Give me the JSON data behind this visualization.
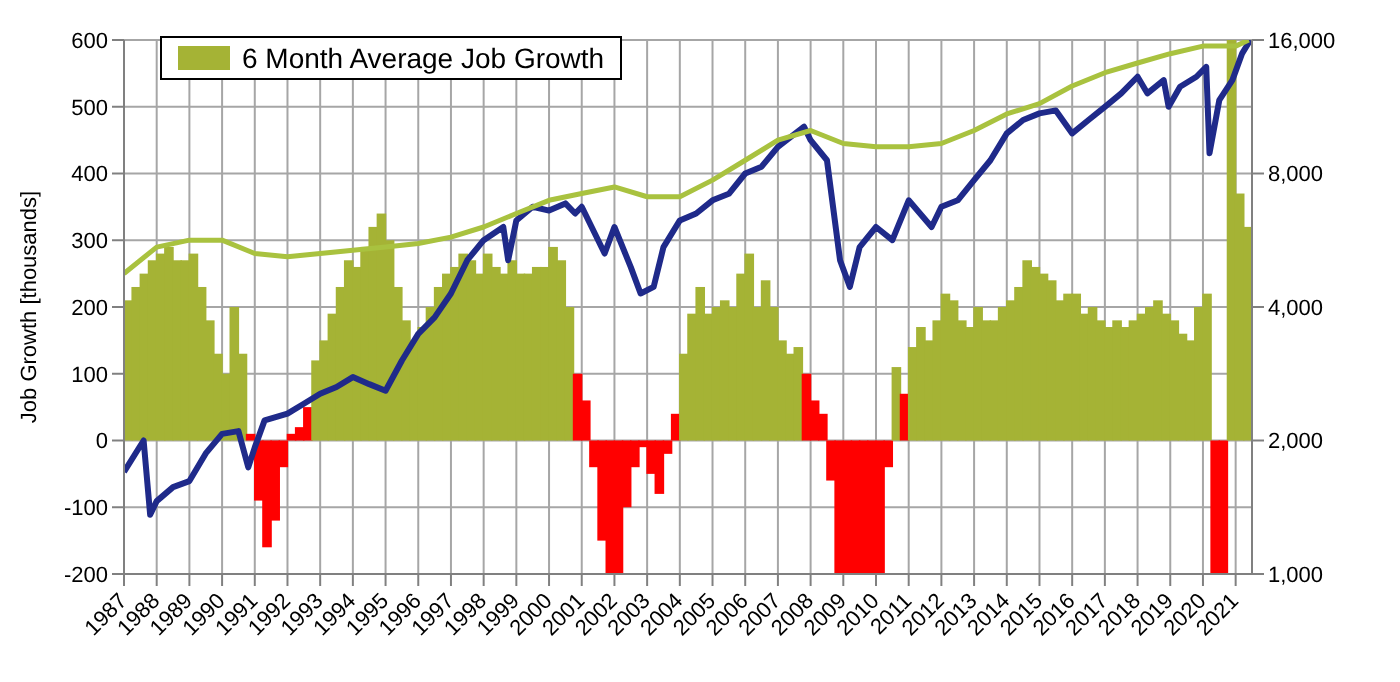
{
  "chart_data": {
    "type": "bar",
    "ylabel": "Job Growth [thousands]",
    "xlim": [
      1987,
      2021.5
    ],
    "xticks": [
      1987,
      1988,
      1989,
      1990,
      1991,
      1992,
      1993,
      1994,
      1995,
      1996,
      1997,
      1998,
      1999,
      2000,
      2001,
      2002,
      2003,
      2004,
      2005,
      2006,
      2007,
      2008,
      2009,
      2010,
      2011,
      2012,
      2013,
      2014,
      2015,
      2016,
      2017,
      2018,
      2019,
      2020,
      2021
    ],
    "ylim": [
      -200,
      600
    ],
    "yticks": [
      -200,
      -100,
      0,
      100,
      200,
      300,
      400,
      500,
      600
    ],
    "y2lim": [
      1000,
      16000
    ],
    "y2ticks": [
      {
        "value": 1000,
        "label": "1,000"
      },
      {
        "value": 2000,
        "label": "2,000"
      },
      {
        "value": 4000,
        "label": "4,000"
      },
      {
        "value": 8000,
        "label": "8,000"
      },
      {
        "value": 16000,
        "label": "16,000"
      }
    ],
    "log": "y2",
    "grid": true,
    "legend": "top left",
    "series": [
      {
        "name": "6 Month Average Job Growth",
        "color": "#a5b335",
        "x": [
          1987.125,
          1987.375,
          1987.625,
          1987.875,
          1988.125,
          1988.375,
          1988.625,
          1988.875,
          1989.125,
          1989.375,
          1989.625,
          1989.875,
          1990.125,
          1990.375,
          1990.625,
          1990.875,
          1991.125,
          1991.375,
          1991.625,
          1991.875,
          1992.125,
          1992.375,
          1992.625,
          1992.875,
          1993.125,
          1993.375,
          1993.625,
          1993.875,
          1994.125,
          1994.375,
          1994.625,
          1994.875,
          1995.125,
          1995.375,
          1995.625,
          1995.875,
          1996.125,
          1996.375,
          1996.625,
          1996.875,
          1997.125,
          1997.375,
          1997.625,
          1997.875,
          1998.125,
          1998.375,
          1998.625,
          1998.875,
          1999.125,
          1999.375,
          1999.625,
          1999.875,
          2000.125,
          2000.375,
          2000.625,
          2000.875,
          2001.125,
          2001.375,
          2001.625,
          2001.875,
          2002.125,
          2002.375,
          2002.625,
          2002.875,
          2003.125,
          2003.375,
          2003.625,
          2003.875,
          2004.125,
          2004.375,
          2004.625,
          2004.875,
          2005.125,
          2005.375,
          2005.625,
          2005.875,
          2006.125,
          2006.375,
          2006.625,
          2006.875,
          2007.125,
          2007.375,
          2007.625,
          2007.875,
          2008.125,
          2008.375,
          2008.625,
          2008.875,
          2009.125,
          2009.375,
          2009.625,
          2009.875,
          2010.125,
          2010.375,
          2010.625,
          2010.875,
          2011.125,
          2011.375,
          2011.625,
          2011.875,
          2012.125,
          2012.375,
          2012.625,
          2012.875,
          2013.125,
          2013.375,
          2013.625,
          2013.875,
          2014.125,
          2014.375,
          2014.625,
          2014.875,
          2015.125,
          2015.375,
          2015.625,
          2015.875,
          2016.125,
          2016.375,
          2016.625,
          2016.875,
          2017.125,
          2017.375,
          2017.625,
          2017.875,
          2018.125,
          2018.375,
          2018.625,
          2018.875,
          2019.125,
          2019.375,
          2019.625,
          2019.875,
          2020.125,
          2020.375,
          2020.625,
          2020.875,
          2021.125,
          2021.375
        ],
        "values": [
          210,
          230,
          250,
          270,
          280,
          290,
          270,
          270,
          280,
          230,
          180,
          130,
          100,
          200,
          130,
          10,
          -90,
          -160,
          -120,
          -40,
          10,
          20,
          50,
          120,
          150,
          190,
          230,
          270,
          260,
          290,
          320,
          340,
          300,
          230,
          180,
          150,
          170,
          200,
          230,
          250,
          260,
          280,
          270,
          250,
          280,
          260,
          250,
          270,
          250,
          250,
          260,
          260,
          290,
          270,
          200,
          100,
          60,
          -40,
          -150,
          -200,
          -200,
          -100,
          -40,
          -10,
          -50,
          -80,
          -20,
          40,
          130,
          190,
          230,
          190,
          200,
          210,
          200,
          250,
          280,
          200,
          240,
          200,
          150,
          130,
          140,
          100,
          60,
          40,
          -60,
          -200,
          -200,
          -200,
          -200,
          -200,
          -200,
          -40,
          110,
          70,
          140,
          170,
          150,
          180,
          220,
          210,
          180,
          170,
          200,
          180,
          180,
          200,
          210,
          230,
          270,
          260,
          250,
          240,
          210,
          220,
          220,
          190,
          200,
          180,
          170,
          180,
          170,
          180,
          190,
          200,
          210,
          190,
          180,
          160,
          150,
          200,
          220,
          -200,
          -200,
          600,
          370,
          320
        ],
        "colors": [
          "#a5b335",
          "#a5b335",
          "#a5b335",
          "#a5b335",
          "#a5b335",
          "#a5b335",
          "#a5b335",
          "#a5b335",
          "#a5b335",
          "#a5b335",
          "#a5b335",
          "#a5b335",
          "#a5b335",
          "#a5b335",
          "#a5b335",
          "#ff0000",
          "#ff0000",
          "#ff0000",
          "#ff0000",
          "#ff0000",
          "#ff0000",
          "#ff0000",
          "#ff0000",
          "#a5b335",
          "#a5b335",
          "#a5b335",
          "#a5b335",
          "#a5b335",
          "#a5b335",
          "#a5b335",
          "#a5b335",
          "#a5b335",
          "#a5b335",
          "#a5b335",
          "#a5b335",
          "#a5b335",
          "#a5b335",
          "#a5b335",
          "#a5b335",
          "#a5b335",
          "#a5b335",
          "#a5b335",
          "#a5b335",
          "#a5b335",
          "#a5b335",
          "#a5b335",
          "#a5b335",
          "#a5b335",
          "#a5b335",
          "#a5b335",
          "#a5b335",
          "#a5b335",
          "#a5b335",
          "#a5b335",
          "#a5b335",
          "#ff0000",
          "#ff0000",
          "#ff0000",
          "#ff0000",
          "#ff0000",
          "#ff0000",
          "#ff0000",
          "#ff0000",
          "#ff0000",
          "#ff0000",
          "#ff0000",
          "#ff0000",
          "#ff0000",
          "#a5b335",
          "#a5b335",
          "#a5b335",
          "#a5b335",
          "#a5b335",
          "#a5b335",
          "#a5b335",
          "#a5b335",
          "#a5b335",
          "#a5b335",
          "#a5b335",
          "#a5b335",
          "#a5b335",
          "#a5b335",
          "#a5b335",
          "#ff0000",
          "#ff0000",
          "#ff0000",
          "#ff0000",
          "#ff0000",
          "#ff0000",
          "#ff0000",
          "#ff0000",
          "#ff0000",
          "#ff0000",
          "#ff0000",
          "#a5b335",
          "#ff0000",
          "#a5b335",
          "#a5b335",
          "#a5b335",
          "#a5b335",
          "#a5b335",
          "#a5b335",
          "#a5b335",
          "#a5b335",
          "#a5b335",
          "#a5b335",
          "#a5b335",
          "#a5b335",
          "#a5b335",
          "#a5b335",
          "#a5b335",
          "#a5b335",
          "#a5b335",
          "#a5b335",
          "#a5b335",
          "#a5b335",
          "#a5b335",
          "#a5b335",
          "#a5b335",
          "#a5b335",
          "#a5b335",
          "#a5b335",
          "#a5b335",
          "#a5b335",
          "#a5b335",
          "#a5b335",
          "#a5b335",
          "#a5b335",
          "#a5b335",
          "#a5b335",
          "#a5b335",
          "#a5b335",
          "#a5b335",
          "#ff0000",
          "#ff0000",
          "#a5b335",
          "#a5b335",
          "#a5b335"
        ]
      },
      {
        "type": "line",
        "axis": "y2",
        "color": "#1f2a8a",
        "x": [
          1987.0,
          1987.6,
          1987.8,
          1988.0,
          1988.5,
          1989.0,
          1989.5,
          1990.0,
          1990.5,
          1990.8,
          1991.0,
          1991.3,
          1992.0,
          1992.5,
          1993.0,
          1993.5,
          1994.0,
          1994.5,
          1995.0,
          1995.5,
          1996.0,
          1996.5,
          1997.0,
          1997.5,
          1998.0,
          1998.6,
          1998.75,
          1999.0,
          1999.5,
          2000.0,
          2000.5,
          2000.8,
          2001.0,
          2001.7,
          2002.0,
          2002.5,
          2002.8,
          2003.2,
          2003.5,
          2004.0,
          2004.5,
          2005.0,
          2005.5,
          2006.0,
          2006.5,
          2007.0,
          2007.8,
          2008.0,
          2008.5,
          2008.9,
          2009.2,
          2009.5,
          2010.0,
          2010.5,
          2011.0,
          2011.7,
          2012.0,
          2012.5,
          2013.0,
          2013.5,
          2014.0,
          2014.5,
          2015.0,
          2015.5,
          2016.0,
          2016.5,
          2017.0,
          2017.5,
          2018.0,
          2018.3,
          2018.8,
          2018.95,
          2019.3,
          2019.8,
          2020.1,
          2020.2,
          2020.5,
          2020.9,
          2021.2,
          2021.45
        ],
        "values": [
          1700,
          2000,
          1360,
          1460,
          1570,
          1620,
          1870,
          2070,
          2100,
          1740,
          1930,
          2220,
          2300,
          2420,
          2550,
          2640,
          2780,
          2680,
          2590,
          3030,
          3480,
          3790,
          4290,
          5100,
          5660,
          6060,
          5100,
          6270,
          6730,
          6600,
          6850,
          6500,
          6730,
          5280,
          6060,
          4920,
          4290,
          4440,
          5460,
          6270,
          6500,
          6960,
          7200,
          8000,
          8290,
          9190,
          10200,
          9510,
          8570,
          5100,
          4440,
          5460,
          6060,
          5660,
          6960,
          6060,
          6730,
          6960,
          7730,
          8570,
          9850,
          10560,
          10930,
          11100,
          9850,
          10560,
          11310,
          12130,
          13220,
          12130,
          12990,
          11310,
          12550,
          13220,
          13920,
          8890,
          11710,
          12990,
          14930,
          16000
        ]
      },
      {
        "type": "line",
        "axis": "y2",
        "color": "#a9c23f",
        "x": [
          1987,
          1988,
          1989,
          1990,
          1991,
          1992,
          1993,
          1994,
          1995,
          1996,
          1997,
          1998,
          1999,
          2000,
          2001,
          2002,
          2003,
          2004,
          2005,
          2006,
          2007,
          2008,
          2009,
          2010,
          2011,
          2012,
          2013,
          2014,
          2015,
          2016,
          2017,
          2018,
          2019,
          2020,
          2021,
          2021.4
        ],
        "values": [
          4760,
          5460,
          5660,
          5660,
          5280,
          5190,
          5280,
          5370,
          5460,
          5560,
          5750,
          6060,
          6500,
          6960,
          7210,
          7460,
          7090,
          7090,
          7730,
          8570,
          9510,
          10000,
          9350,
          9190,
          9190,
          9350,
          10000,
          10900,
          11500,
          12600,
          13500,
          14200,
          14900,
          15500,
          15500,
          16000
        ]
      }
    ]
  }
}
